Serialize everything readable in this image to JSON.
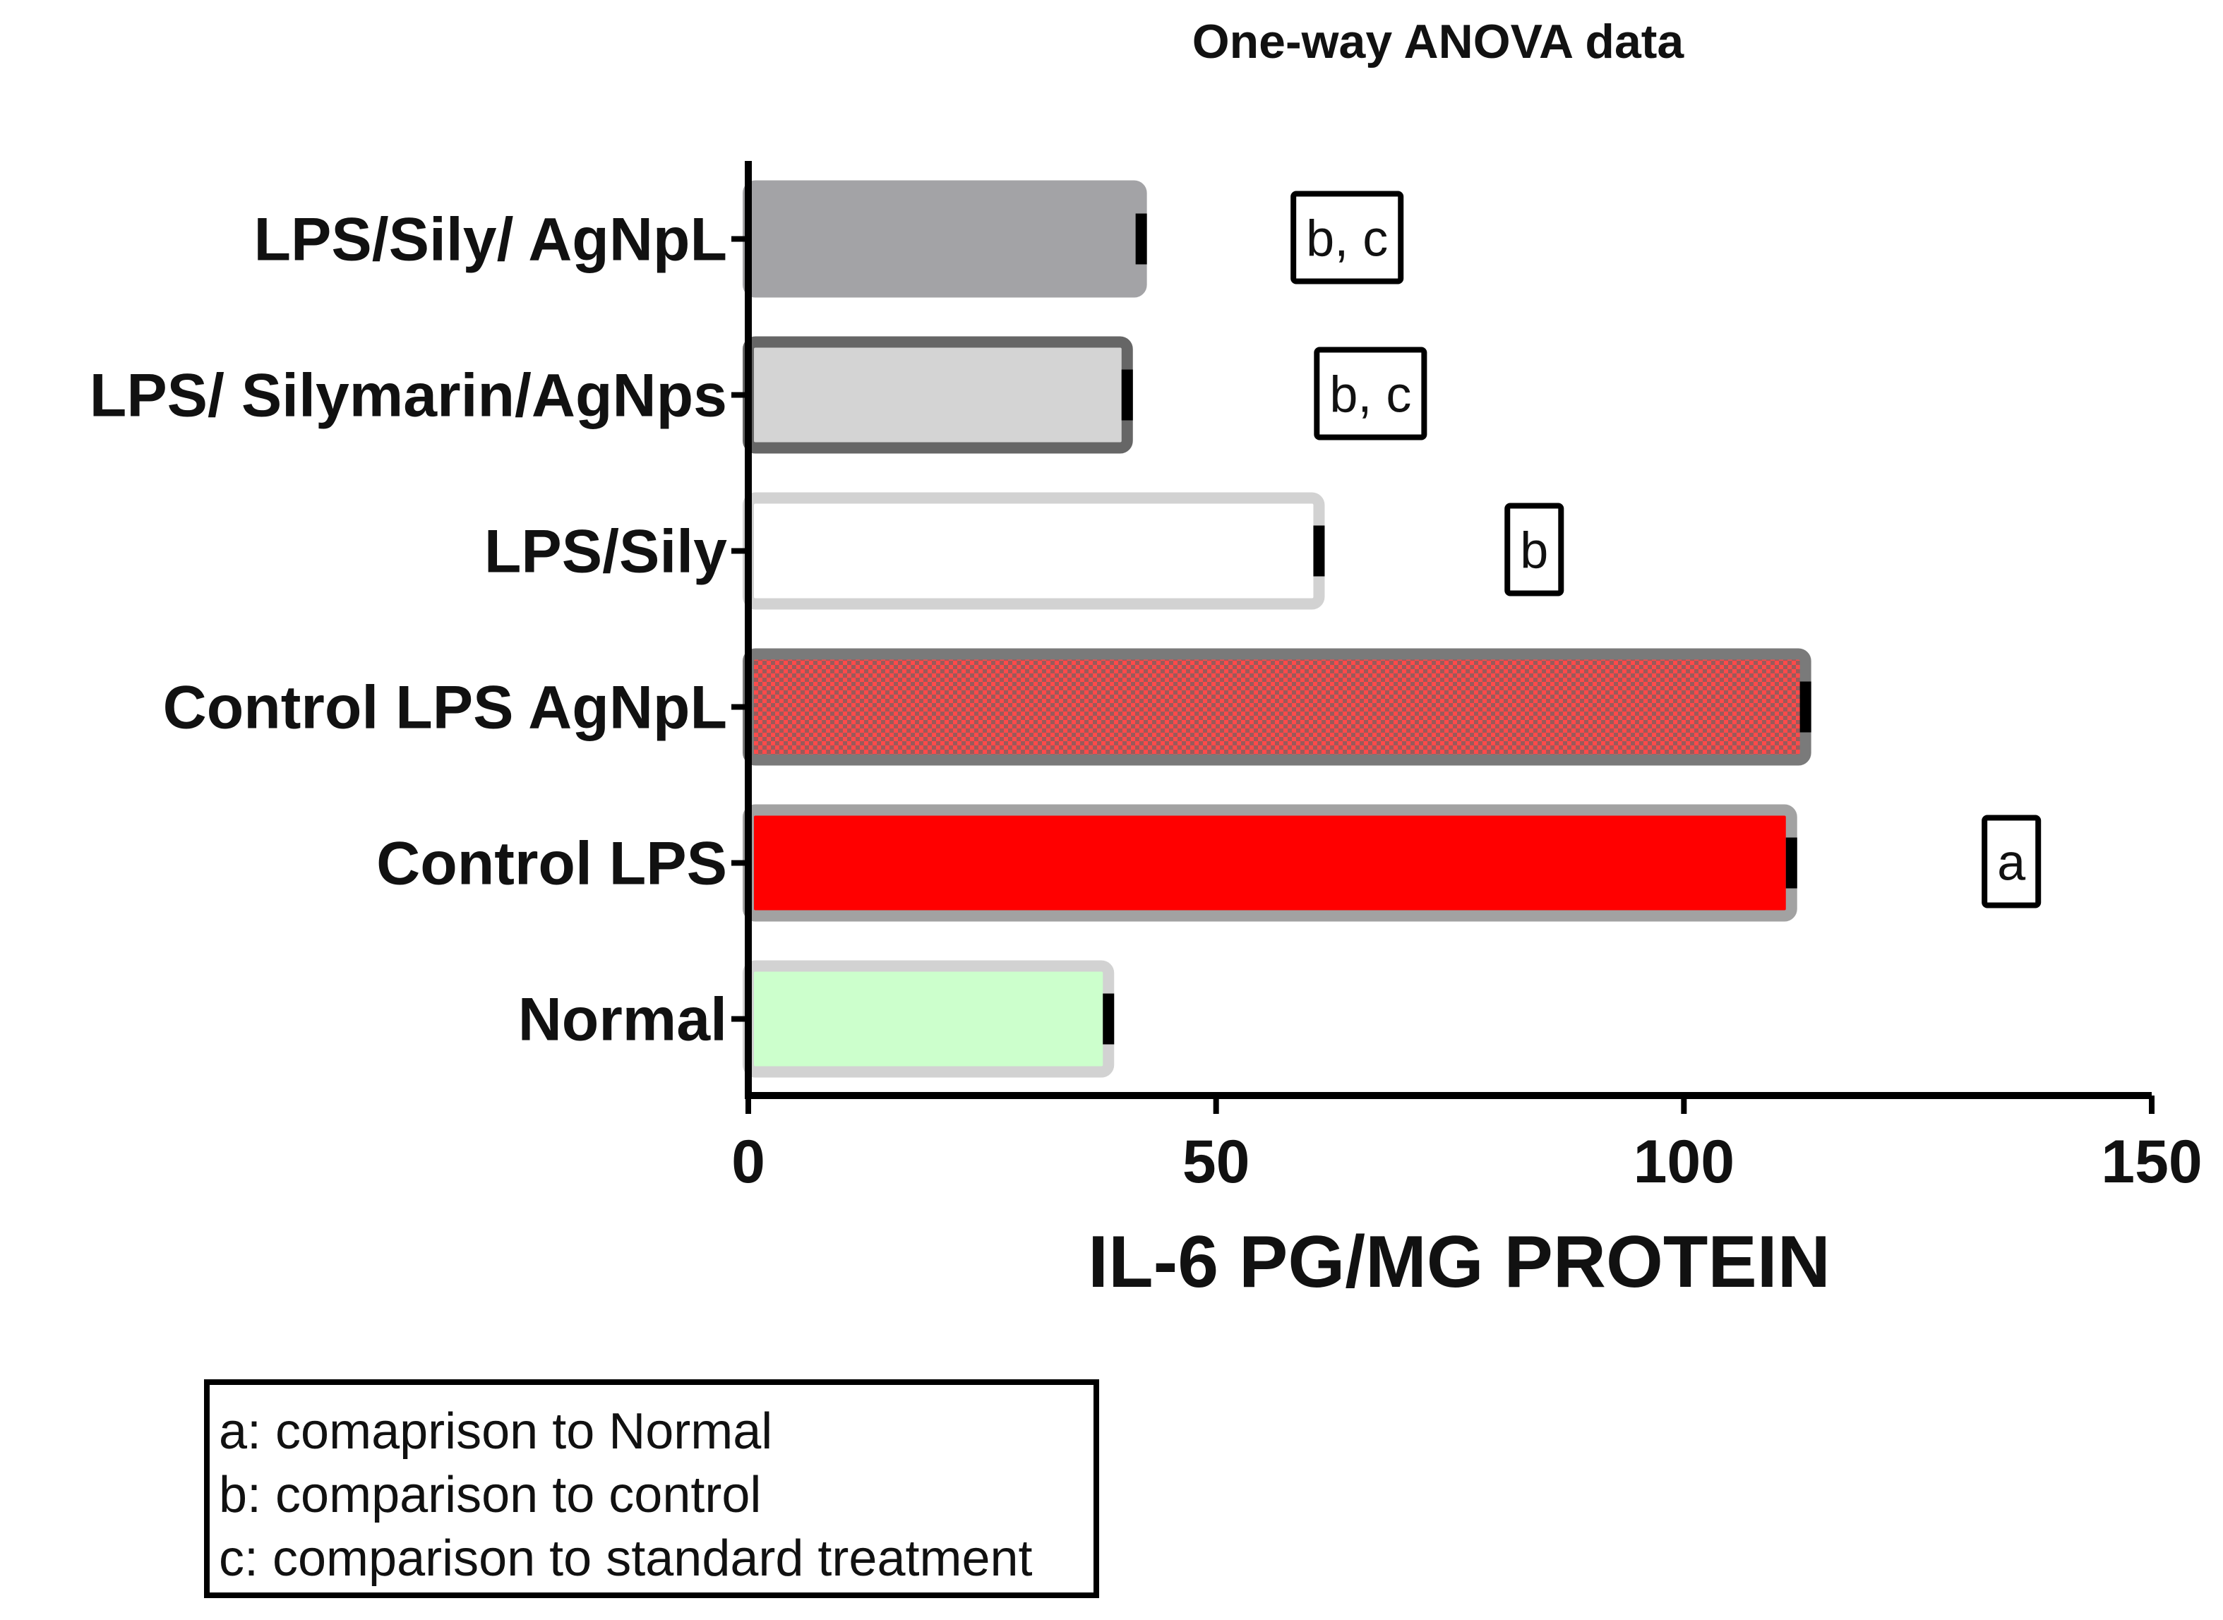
{
  "chart_data": {
    "type": "bar",
    "orientation": "horizontal",
    "title": "One-way ANOVA data",
    "xlabel": "IL-6 PG/MG PROTEIN",
    "ylabel": "",
    "xlim": [
      0,
      150
    ],
    "xticks": [
      "0",
      "50",
      "100",
      "150"
    ],
    "grid": false,
    "categories": [
      "LPS/Sily/ AgNpL",
      "LPS/ Silymarin/AgNps",
      "LPS/Sily",
      "Control LPS AgNpL",
      "Control LPS",
      "Normal"
    ],
    "values": [
      42,
      40.5,
      61,
      113,
      111.5,
      38.5
    ],
    "errors": [
      1,
      1,
      1,
      1,
      1,
      1
    ],
    "bar_styles": [
      {
        "fill": "#a3a3a6",
        "stroke": "#a3a3a6",
        "pattern": "none"
      },
      {
        "fill": "#d4d4d4",
        "stroke": "#666666",
        "pattern": "none"
      },
      {
        "fill": "#ffffff",
        "stroke": "#d2d2d2",
        "pattern": "none"
      },
      {
        "fill": "#e23a3a",
        "stroke": "#7a7a7a",
        "pattern": "checker"
      },
      {
        "fill": "#ff0000",
        "stroke": "#a2a2a2",
        "pattern": "none"
      },
      {
        "fill": "#ccffcc",
        "stroke": "#d2d2d2",
        "pattern": "none"
      }
    ],
    "annotations": [
      "b, c",
      "b, c",
      "b",
      "",
      "a",
      ""
    ],
    "annotation_x": [
      64,
      66.5,
      84,
      null,
      135,
      null
    ],
    "legend_position": "bottom-left",
    "legend_lines": [
      "a: comaprison to Normal",
      "b: comparison to control",
      "c: comparison to standard treatment"
    ]
  }
}
